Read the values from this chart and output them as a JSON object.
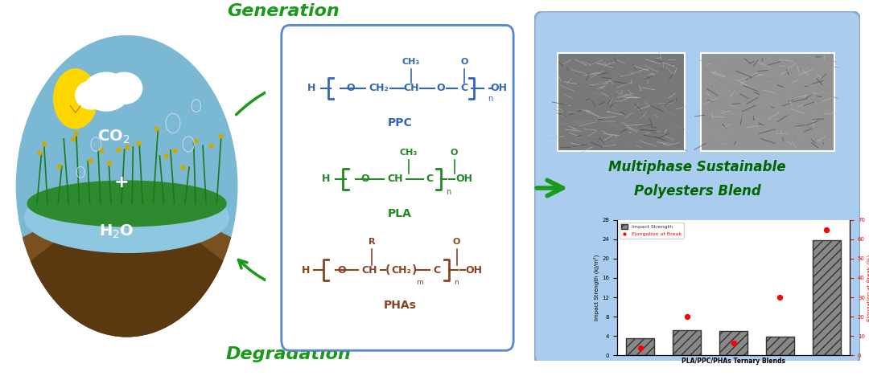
{
  "fig_width": 10.8,
  "fig_height": 4.68,
  "background_color": "#ffffff",
  "generation_text": "Generation",
  "degradation_text": "Degradation",
  "gen_deg_color": "#1a9a1a",
  "gen_deg_fontsize": 16,
  "circle_sky_color": "#7ab8d4",
  "circle_soil_color": "#7a5020",
  "circle_water_color": "#a8c8e0",
  "circle_grass_color": "#2e8a2e",
  "ppc_color": "#3366bb",
  "pla_color": "#228822",
  "phas_color": "#884422",
  "box_border_color": "#5588cc",
  "title_text_line1": "Multiphase Sustainable",
  "title_text_line2": "Polyesters Blend",
  "title_color": "#006600",
  "title_fontsize": 12,
  "bar_values": [
    3.5,
    5.2,
    5.0,
    3.8,
    23.8
  ],
  "bar_color": "#888888",
  "bar_hatch": "///",
  "bar_edgecolor": "#333333",
  "scatter_values": [
    4.0,
    20.0,
    6.5,
    30.0,
    65.0
  ],
  "scatter_color": "#ff0000",
  "ylabel_left": "Impact Strength (kJ/m²)",
  "ylabel_right": "Elongation at Break (%)",
  "xlabel_chart": "PLA/PPC/PHAs Ternary Blends",
  "ylim_left": [
    0,
    28
  ],
  "ylim_right": [
    0,
    70
  ],
  "yticks_left": [
    0,
    4,
    8,
    12,
    16,
    20,
    24,
    28
  ],
  "yticks_right": [
    0,
    10,
    20,
    30,
    40,
    50,
    60,
    70
  ],
  "legend_bar_label": "Impact Strength",
  "legend_scatter_label": "Elongation at Break",
  "arrow_color": "#1a9a1a",
  "right_box_color": "#aaccee"
}
